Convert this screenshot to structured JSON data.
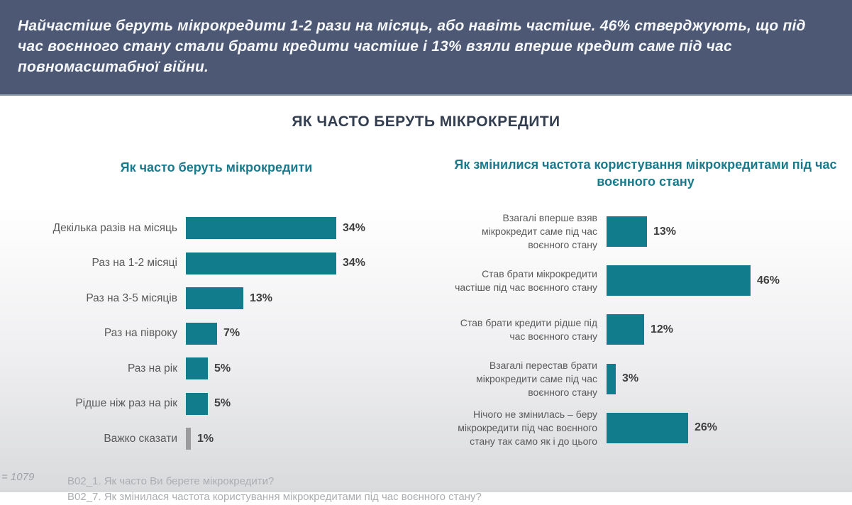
{
  "banner": {
    "text": "Найчастіше беруть мікрокредити 1-2 рази на місяць, або навіть частіше. 46% стверджують, що під час воєнного стану стали брати кредити частіше і 13% взяли вперше кредит саме під час повномасштабної війни."
  },
  "page_title": "ЯК ЧАСТО БЕРУТЬ МІКРОКРЕДИТИ",
  "colors": {
    "banner_bg": "#4C5874",
    "banner_underline": "#8C9CAD",
    "title_navy": "#333F50",
    "chart_title_teal": "#1A7A8C",
    "bar_teal": "#117D8C",
    "bar_gray": "#9B9B9B",
    "label_gray": "#595959",
    "value_label": "#3F3F3F",
    "footer_gray": "#ABADB0"
  },
  "chart_data": [
    {
      "type": "bar",
      "orientation": "horizontal",
      "title": "Як часто беруть мікрокредити",
      "categories": [
        "Декілька разів на місяць",
        "Раз на 1-2 місяці",
        "Раз на 3-5 місяців",
        "Раз на півроку",
        "Раз на рік",
        "Рідше ніж раз на рік",
        "Важко сказати"
      ],
      "values": [
        34,
        34,
        13,
        7,
        5,
        5,
        1
      ],
      "unit": "%",
      "value_labels": [
        "34%",
        "34%",
        "13%",
        "7%",
        "5%",
        "5%",
        "1%"
      ],
      "bar_color": "#117D8C",
      "bar_colors": [
        "#117D8C",
        "#117D8C",
        "#117D8C",
        "#117D8C",
        "#117D8C",
        "#117D8C",
        "#9B9B9B"
      ],
      "axes": "none",
      "grid": false,
      "legend": false,
      "data_labels_position": "right-of-bar"
    },
    {
      "type": "bar",
      "orientation": "horizontal",
      "title": "Як змінилися частота користування мікрокредитами під час воєнного стану",
      "categories": [
        "Взагалі вперше взяв мікрокредит саме під час воєнного стану",
        "Став брати мікрокредити частіше під час воєнного стану",
        "Став брати кредити рідше під час воєнного стану",
        "Взагалі перестав брати мікрокредити саме під час воєнного стану",
        "Нічого не змінилась – беру мікрокредити під час воєнного стану так само як і до цього"
      ],
      "values": [
        13,
        46,
        12,
        3,
        26
      ],
      "unit": "%",
      "value_labels": [
        "13%",
        "46%",
        "12%",
        "3%",
        "26%"
      ],
      "bar_color": "#117D8C",
      "axes": "none",
      "grid": false,
      "legend": false,
      "data_labels_position": "right-of-bar"
    }
  ],
  "footer": {
    "sample_note": "= 1079",
    "question_1": "В02_1. Як часто Ви берете мікрокредити?",
    "question_2": "В02_7. Як змінилася частота користування мікрокредитами під час воєнного стану?"
  }
}
